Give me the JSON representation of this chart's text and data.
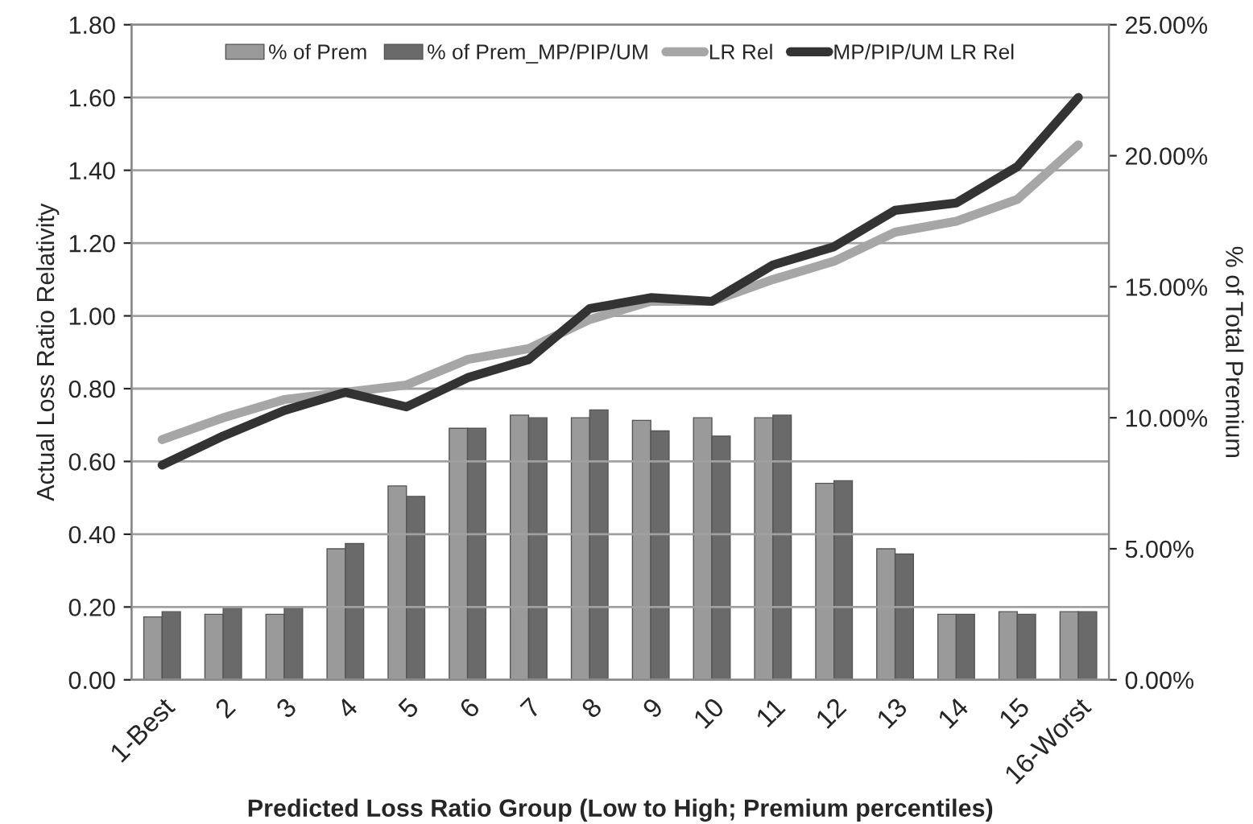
{
  "chart_data": {
    "type": "bar",
    "xlabel": "Predicted Loss Ratio Group (Low to High; Premium percentiles)",
    "ylabel": "Actual Loss Ratio Relativity",
    "y2label": "% of Total Premium",
    "categories": [
      "1-Best",
      "2",
      "3",
      "4",
      "5",
      "6",
      "7",
      "8",
      "9",
      "10",
      "11",
      "12",
      "13",
      "14",
      "15",
      "16-Worst"
    ],
    "series": [
      {
        "name": "% of Prem",
        "axis": "y2",
        "color": "#9a9a9a",
        "values": [
          2.4,
          2.5,
          2.5,
          5.0,
          7.4,
          9.6,
          10.1,
          10.0,
          9.9,
          10.0,
          10.0,
          7.5,
          5.0,
          2.5,
          2.6,
          2.6
        ]
      },
      {
        "name": "% of Prem_MP/PIP/UM",
        "axis": "y2",
        "color": "#6a6a6a",
        "values": [
          2.6,
          2.8,
          2.8,
          5.2,
          7.0,
          9.6,
          10.0,
          10.3,
          9.5,
          9.3,
          10.1,
          7.6,
          4.8,
          2.5,
          2.5,
          2.6
        ]
      },
      {
        "name": "LR Rel",
        "type": "line",
        "color": "#a6a6a6",
        "values": [
          0.66,
          0.72,
          0.77,
          0.79,
          0.81,
          0.88,
          0.91,
          0.99,
          1.04,
          1.04,
          1.1,
          1.15,
          1.23,
          1.26,
          1.32,
          1.47
        ]
      },
      {
        "name": "MP/PIP/UM LR Rel",
        "type": "line",
        "color": "#333333",
        "values": [
          0.59,
          0.67,
          0.74,
          0.79,
          0.75,
          0.83,
          0.88,
          1.02,
          1.05,
          1.04,
          1.14,
          1.19,
          1.29,
          1.31,
          1.41,
          1.6
        ]
      }
    ],
    "ylim": [
      0,
      1.8
    ],
    "yticks": [
      {
        "value": 0,
        "label": "0.00"
      },
      {
        "value": 0.2,
        "label": "0.20"
      },
      {
        "value": 0.4,
        "label": "0.40"
      },
      {
        "value": 0.6,
        "label": "0.60"
      },
      {
        "value": 0.8,
        "label": "0.80"
      },
      {
        "value": 1.0,
        "label": "1.00"
      },
      {
        "value": 1.2,
        "label": "1.20"
      },
      {
        "value": 1.4,
        "label": "1.40"
      },
      {
        "value": 1.6,
        "label": "1.60"
      },
      {
        "value": 1.8,
        "label": "1.80"
      }
    ],
    "y2lim": [
      0,
      25
    ],
    "y2ticks": [
      {
        "value": 0,
        "label": "0.00%"
      },
      {
        "value": 5,
        "label": "5.00%"
      },
      {
        "value": 10,
        "label": "10.00%"
      },
      {
        "value": 15,
        "label": "15.00%"
      },
      {
        "value": 20,
        "label": "20.00%"
      },
      {
        "value": 25,
        "label": "25.00%"
      }
    ],
    "grid": "y",
    "legend": "top",
    "line_style": "solid",
    "marker": "none"
  }
}
